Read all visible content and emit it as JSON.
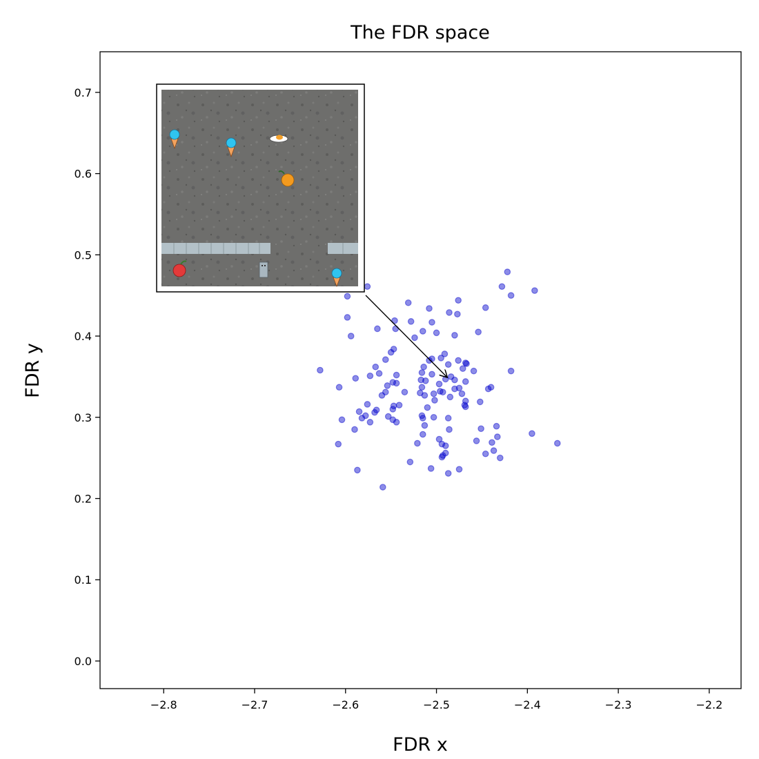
{
  "chart_data": {
    "type": "scatter",
    "title": "The FDR space",
    "xlabel": "FDR x",
    "ylabel": "FDR y",
    "xlim": [
      -2.87,
      -2.165
    ],
    "ylim": [
      -0.034,
      0.75
    ],
    "xticks": [
      -2.8,
      -2.7,
      -2.6,
      -2.5,
      -2.4,
      -2.3,
      -2.2
    ],
    "xtick_labels": [
      "−2.8",
      "−2.7",
      "−2.6",
      "−2.5",
      "−2.4",
      "−2.3",
      "−2.2"
    ],
    "yticks": [
      0.0,
      0.1,
      0.2,
      0.3,
      0.4,
      0.5,
      0.6,
      0.7
    ],
    "ytick_labels": [
      "0.0",
      "0.1",
      "0.2",
      "0.3",
      "0.4",
      "0.5",
      "0.6",
      "0.7"
    ],
    "grid": false,
    "marker_color": "#0000cc",
    "marker_alpha": 0.45,
    "annotation": {
      "type": "arrow-to-point",
      "target": [
        -2.488,
        0.349
      ],
      "inset": "game-screenshot-thumbnail"
    },
    "points": [
      [
        -2.422,
        0.479
      ],
      [
        -2.428,
        0.461
      ],
      [
        -2.392,
        0.456
      ],
      [
        -2.418,
        0.45
      ],
      [
        -2.576,
        0.461
      ],
      [
        -2.598,
        0.449
      ],
      [
        -2.598,
        0.423
      ],
      [
        -2.594,
        0.4
      ],
      [
        -2.476,
        0.444
      ],
      [
        -2.446,
        0.435
      ],
      [
        -2.531,
        0.441
      ],
      [
        -2.508,
        0.434
      ],
      [
        -2.565,
        0.409
      ],
      [
        -2.546,
        0.419
      ],
      [
        -2.528,
        0.418
      ],
      [
        -2.505,
        0.417
      ],
      [
        -2.486,
        0.429
      ],
      [
        -2.477,
        0.427
      ],
      [
        -2.454,
        0.405
      ],
      [
        -2.5,
        0.404
      ],
      [
        -2.515,
        0.406
      ],
      [
        -2.48,
        0.401
      ],
      [
        -2.545,
        0.409
      ],
      [
        -2.524,
        0.398
      ],
      [
        -2.628,
        0.358
      ],
      [
        -2.589,
        0.348
      ],
      [
        -2.547,
        0.384
      ],
      [
        -2.55,
        0.38
      ],
      [
        -2.556,
        0.371
      ],
      [
        -2.567,
        0.362
      ],
      [
        -2.563,
        0.354
      ],
      [
        -2.573,
        0.351
      ],
      [
        -2.508,
        0.37
      ],
      [
        -2.514,
        0.362
      ],
      [
        -2.516,
        0.355
      ],
      [
        -2.505,
        0.372
      ],
      [
        -2.491,
        0.378
      ],
      [
        -2.495,
        0.373
      ],
      [
        -2.487,
        0.365
      ],
      [
        -2.476,
        0.37
      ],
      [
        -2.468,
        0.367
      ],
      [
        -2.467,
        0.366
      ],
      [
        -2.459,
        0.357
      ],
      [
        -2.471,
        0.36
      ],
      [
        -2.418,
        0.357
      ],
      [
        -2.484,
        0.35
      ],
      [
        -2.49,
        0.347
      ],
      [
        -2.48,
        0.346
      ],
      [
        -2.497,
        0.341
      ],
      [
        -2.468,
        0.344
      ],
      [
        -2.505,
        0.353
      ],
      [
        -2.517,
        0.346
      ],
      [
        -2.512,
        0.345
      ],
      [
        -2.516,
        0.337
      ],
      [
        -2.544,
        0.352
      ],
      [
        -2.548,
        0.343
      ],
      [
        -2.544,
        0.342
      ],
      [
        -2.554,
        0.339
      ],
      [
        -2.607,
        0.337
      ],
      [
        -2.56,
        0.327
      ],
      [
        -2.556,
        0.331
      ],
      [
        -2.518,
        0.33
      ],
      [
        -2.513,
        0.327
      ],
      [
        -2.496,
        0.332
      ],
      [
        -2.493,
        0.331
      ],
      [
        -2.503,
        0.329
      ],
      [
        -2.485,
        0.325
      ],
      [
        -2.48,
        0.335
      ],
      [
        -2.475,
        0.336
      ],
      [
        -2.472,
        0.329
      ],
      [
        -2.502,
        0.321
      ],
      [
        -2.468,
        0.32
      ],
      [
        -2.469,
        0.315
      ],
      [
        -2.468,
        0.313
      ],
      [
        -2.452,
        0.319
      ],
      [
        -2.44,
        0.337
      ],
      [
        -2.443,
        0.335
      ],
      [
        -2.576,
        0.316
      ],
      [
        -2.566,
        0.309
      ],
      [
        -2.568,
        0.306
      ],
      [
        -2.585,
        0.307
      ],
      [
        -2.547,
        0.314
      ],
      [
        -2.541,
        0.315
      ],
      [
        -2.535,
        0.331
      ],
      [
        -2.548,
        0.31
      ],
      [
        -2.604,
        0.297
      ],
      [
        -2.582,
        0.299
      ],
      [
        -2.578,
        0.302
      ],
      [
        -2.573,
        0.294
      ],
      [
        -2.553,
        0.301
      ],
      [
        -2.548,
        0.297
      ],
      [
        -2.544,
        0.294
      ],
      [
        -2.516,
        0.302
      ],
      [
        -2.515,
        0.299
      ],
      [
        -2.513,
        0.29
      ],
      [
        -2.503,
        0.3
      ],
      [
        -2.487,
        0.299
      ],
      [
        -2.51,
        0.312
      ],
      [
        -2.59,
        0.285
      ],
      [
        -2.486,
        0.285
      ],
      [
        -2.451,
        0.286
      ],
      [
        -2.434,
        0.289
      ],
      [
        -2.433,
        0.276
      ],
      [
        -2.439,
        0.269
      ],
      [
        -2.456,
        0.271
      ],
      [
        -2.515,
        0.279
      ],
      [
        -2.521,
        0.268
      ],
      [
        -2.497,
        0.273
      ],
      [
        -2.494,
        0.267
      ],
      [
        -2.49,
        0.265
      ],
      [
        -2.608,
        0.267
      ],
      [
        -2.395,
        0.28
      ],
      [
        -2.367,
        0.268
      ],
      [
        -2.437,
        0.259
      ],
      [
        -2.446,
        0.255
      ],
      [
        -2.43,
        0.25
      ],
      [
        -2.49,
        0.256
      ],
      [
        -2.493,
        0.253
      ],
      [
        -2.494,
        0.251
      ],
      [
        -2.529,
        0.245
      ],
      [
        -2.506,
        0.237
      ],
      [
        -2.475,
        0.236
      ],
      [
        -2.487,
        0.231
      ],
      [
        -2.587,
        0.235
      ],
      [
        -2.559,
        0.214
      ]
    ]
  }
}
